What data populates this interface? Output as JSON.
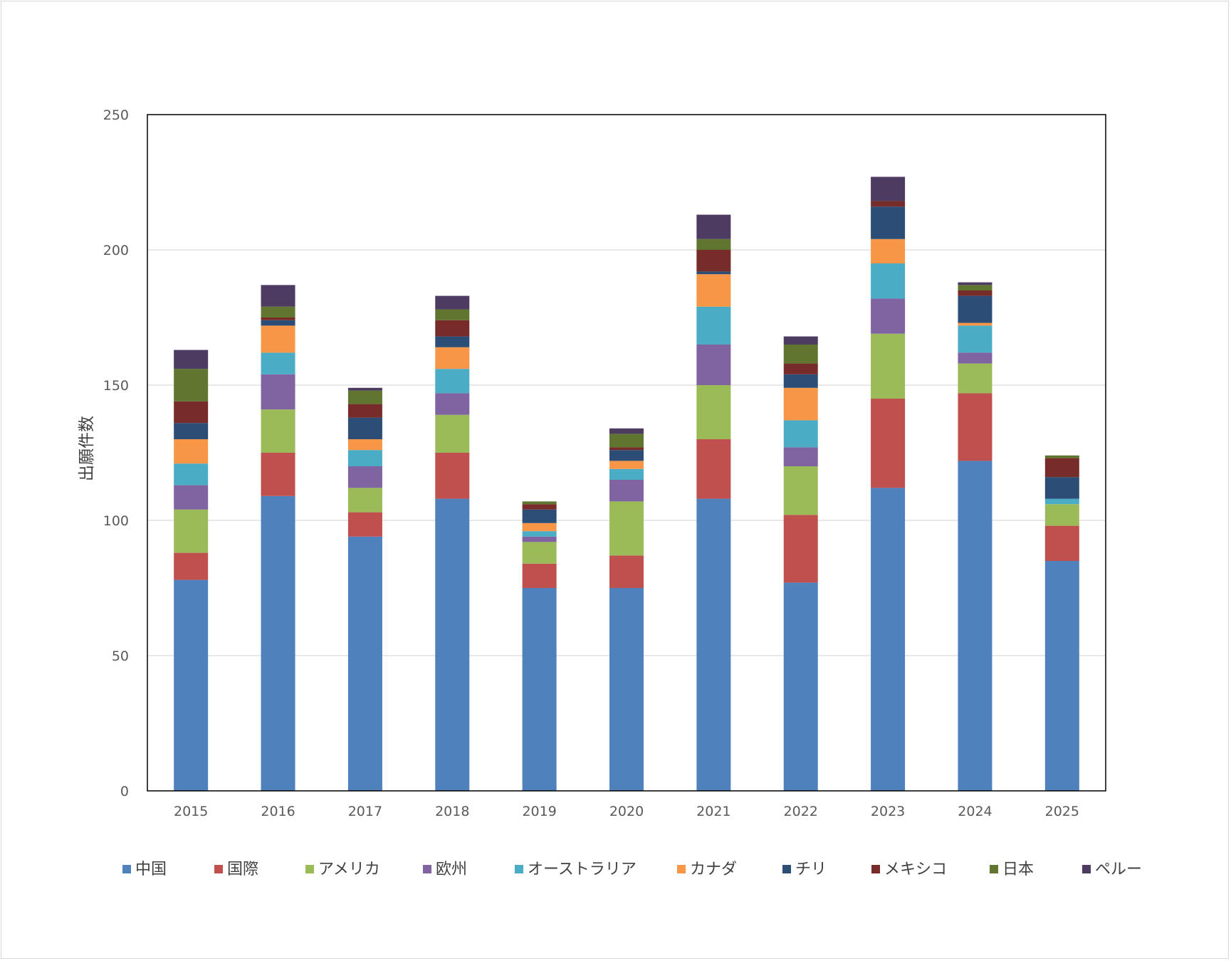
{
  "chart_data": {
    "type": "bar",
    "stacked": true,
    "title": "",
    "xlabel": "",
    "ylabel": "出願件数",
    "ylim": [
      0,
      250
    ],
    "yticks": [
      0,
      50,
      100,
      150,
      200,
      250
    ],
    "grid": true,
    "legend_position": "bottom",
    "categories": [
      "2015",
      "2016",
      "2017",
      "2018",
      "2019",
      "2020",
      "2021",
      "2022",
      "2023",
      "2024",
      "2025"
    ],
    "series": [
      {
        "name": "中国",
        "color": "#4F81BD",
        "values": [
          78,
          109,
          94,
          108,
          75,
          75,
          108,
          77,
          112,
          122,
          85
        ]
      },
      {
        "name": "国際",
        "color": "#C0504D",
        "values": [
          10,
          16,
          9,
          17,
          9,
          12,
          22,
          25,
          33,
          25,
          13
        ]
      },
      {
        "name": "アメリカ",
        "color": "#9BBB59",
        "values": [
          16,
          16,
          9,
          14,
          8,
          20,
          20,
          18,
          24,
          11,
          8
        ]
      },
      {
        "name": "欧州",
        "color": "#8064A2",
        "values": [
          9,
          13,
          8,
          8,
          2,
          8,
          15,
          7,
          13,
          4,
          0
        ]
      },
      {
        "name": "オーストラリア",
        "color": "#4BACC6",
        "values": [
          8,
          8,
          6,
          9,
          2,
          4,
          14,
          10,
          13,
          10,
          2
        ]
      },
      {
        "name": "カナダ",
        "color": "#F79646",
        "values": [
          9,
          10,
          4,
          8,
          3,
          3,
          12,
          12,
          9,
          1,
          0
        ]
      },
      {
        "name": "チリ",
        "color": "#2C4D75",
        "values": [
          6,
          2,
          8,
          4,
          5,
          4,
          1,
          5,
          12,
          10,
          8
        ]
      },
      {
        "name": "メキシコ",
        "color": "#772C2A",
        "values": [
          8,
          1,
          5,
          6,
          2,
          1,
          8,
          4,
          2,
          2,
          7
        ]
      },
      {
        "name": "日本",
        "color": "#5F7530",
        "values": [
          12,
          4,
          5,
          4,
          1,
          5,
          4,
          7,
          0,
          2,
          1
        ]
      },
      {
        "name": "ペルー",
        "color": "#4D3B62",
        "values": [
          7,
          8,
          1,
          5,
          0,
          2,
          9,
          3,
          9,
          1,
          0
        ]
      }
    ]
  }
}
